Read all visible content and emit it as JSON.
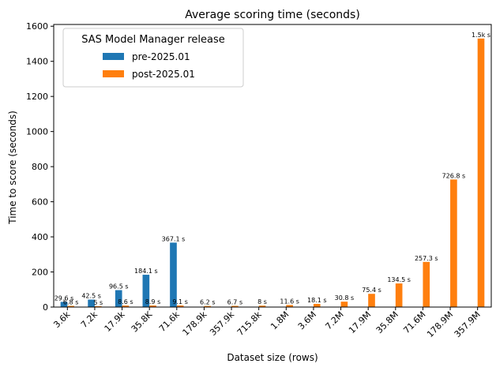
{
  "chart_data": {
    "type": "bar",
    "title": "Average scoring time (seconds)",
    "xlabel": "Dataset size (rows)",
    "ylabel": "Time to score (seconds)",
    "categories": [
      "3.6k",
      "7.2k",
      "17.9k",
      "35.8K",
      "71.6k",
      "178.9k",
      "357.9k",
      "715.8k",
      "1.8M",
      "3.6M",
      "7.2M",
      "17.9M",
      "35.8M",
      "71.6M",
      "178.9M",
      "357.9M"
    ],
    "ylim": [
      0,
      1610
    ],
    "yticks": [
      0,
      200,
      400,
      600,
      800,
      1000,
      1200,
      1400,
      1600
    ],
    "grid": false,
    "legend": {
      "title": "SAS Model Manager release",
      "placement": "top-left"
    },
    "series": [
      {
        "name": "pre-2025.01",
        "color": "#1f77b4",
        "values": [
          29.6,
          42.5,
          96.5,
          184.1,
          367.1,
          null,
          null,
          null,
          null,
          null,
          null,
          null,
          null,
          null,
          null,
          null
        ],
        "labels": [
          "29.6 s",
          "42.5 s",
          "96.5 s",
          "184.1 s",
          "367.1 s",
          "",
          "",
          "",
          "",
          "",
          "",
          "",
          "",
          "",
          "",
          ""
        ]
      },
      {
        "name": "post-2025.01",
        "color": "#ff7f0e",
        "values": [
          6.8,
          5,
          8.6,
          8.9,
          9.1,
          6.2,
          6.7,
          8,
          11.6,
          18.1,
          30.8,
          75.4,
          134.5,
          257.3,
          726.8,
          1530
        ],
        "labels": [
          "6.8 s",
          "5 s",
          "8.6 s",
          "8.9 s",
          "9.1 s",
          "6.2 s",
          "6.7 s",
          "8 s",
          "11.6 s",
          "18.1 s",
          "30.8 s",
          "75.4 s",
          "134.5 s",
          "257.3 s",
          "726.8 s",
          "1.5k s"
        ]
      }
    ]
  }
}
